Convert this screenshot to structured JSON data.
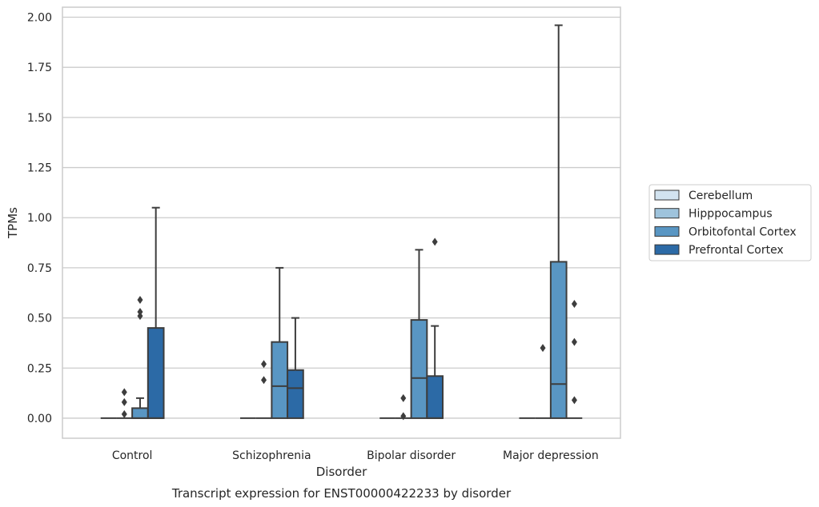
{
  "chart_data": {
    "type": "box",
    "caption": "Transcript expression for ENST00000422233 by disorder",
    "xlabel": "Disorder",
    "ylabel": "TPMs",
    "ylim": [
      -0.1,
      2.05
    ],
    "yticks": [
      0.0,
      0.25,
      0.5,
      0.75,
      1.0,
      1.25,
      1.5,
      1.75,
      2.0
    ],
    "ytick_labels": [
      "0.00",
      "0.25",
      "0.50",
      "0.75",
      "1.00",
      "1.25",
      "1.50",
      "1.75",
      "2.00"
    ],
    "categories": [
      "Control",
      "Schizophrenia",
      "Bipolar disorder",
      "Major depression"
    ],
    "grid": "horizontal",
    "legend_position": "right",
    "series": [
      {
        "name": "Cerebellum",
        "color": "#d2e3f0",
        "boxes": [
          {
            "q1": 0,
            "median": 0,
            "q3": 0,
            "whisker_low": 0,
            "whisker_high": 0,
            "outliers": []
          },
          {
            "q1": 0,
            "median": 0,
            "q3": 0,
            "whisker_low": 0,
            "whisker_high": 0,
            "outliers": []
          },
          {
            "q1": 0,
            "median": 0,
            "q3": 0,
            "whisker_low": 0,
            "whisker_high": 0,
            "outliers": []
          },
          {
            "q1": 0,
            "median": 0,
            "q3": 0,
            "whisker_low": 0,
            "whisker_high": 0,
            "outliers": []
          }
        ]
      },
      {
        "name": "Hipppocampus",
        "color": "#9ec3dc",
        "boxes": [
          {
            "q1": 0,
            "median": 0,
            "q3": 0,
            "whisker_low": 0,
            "whisker_high": 0,
            "outliers": [
              0.02,
              0.08,
              0.13
            ]
          },
          {
            "q1": 0,
            "median": 0,
            "q3": 0,
            "whisker_low": 0,
            "whisker_high": 0,
            "outliers": [
              0.19,
              0.27
            ]
          },
          {
            "q1": 0,
            "median": 0,
            "q3": 0,
            "whisker_low": 0,
            "whisker_high": 0,
            "outliers": [
              0.01,
              0.1
            ]
          },
          {
            "q1": 0,
            "median": 0,
            "q3": 0,
            "whisker_low": 0,
            "whisker_high": 0,
            "outliers": [
              0.35
            ]
          }
        ]
      },
      {
        "name": "Orbitofontal Cortex",
        "color": "#5996c3",
        "boxes": [
          {
            "q1": 0,
            "median": 0,
            "q3": 0.05,
            "whisker_low": 0,
            "whisker_high": 0.1,
            "outliers": [
              0.51,
              0.53,
              0.59
            ]
          },
          {
            "q1": 0,
            "median": 0.16,
            "q3": 0.38,
            "whisker_low": 0,
            "whisker_high": 0.75,
            "outliers": []
          },
          {
            "q1": 0,
            "median": 0.2,
            "q3": 0.49,
            "whisker_low": 0,
            "whisker_high": 0.84,
            "outliers": []
          },
          {
            "q1": 0,
            "median": 0.17,
            "q3": 0.78,
            "whisker_low": 0,
            "whisker_high": 1.96,
            "outliers": []
          }
        ]
      },
      {
        "name": "Prefrontal Cortex",
        "color": "#2c6aa6",
        "boxes": [
          {
            "q1": 0,
            "median": 0,
            "q3": 0.45,
            "whisker_low": 0,
            "whisker_high": 1.05,
            "outliers": []
          },
          {
            "q1": 0,
            "median": 0.15,
            "q3": 0.24,
            "whisker_low": 0,
            "whisker_high": 0.5,
            "outliers": []
          },
          {
            "q1": 0,
            "median": 0,
            "q3": 0.21,
            "whisker_low": 0,
            "whisker_high": 0.46,
            "outliers": [
              0.88
            ]
          },
          {
            "q1": 0,
            "median": 0,
            "q3": 0,
            "whisker_low": 0,
            "whisker_high": 0,
            "outliers": [
              0.09,
              0.38,
              0.57
            ]
          }
        ]
      }
    ]
  }
}
